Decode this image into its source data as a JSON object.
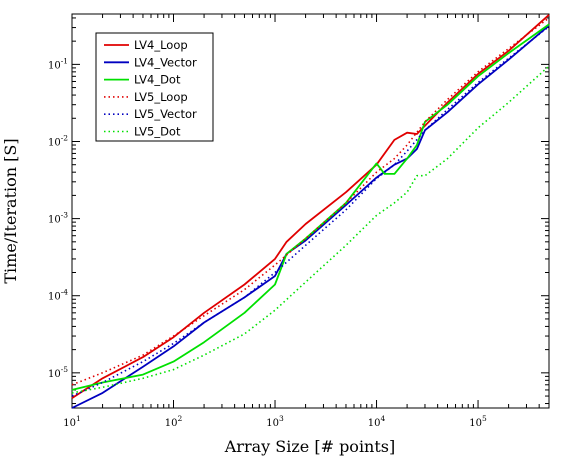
{
  "chart_data": {
    "type": "line",
    "xlabel": "Array Size [# points]",
    "ylabel": "Time/Iteration [S]",
    "xscale": "log",
    "yscale": "log",
    "xlim": [
      10,
      500000
    ],
    "ylim": [
      3.5e-06,
      0.45
    ],
    "x_ticks": [
      {
        "value": 10,
        "base": "10",
        "exp": "1"
      },
      {
        "value": 100,
        "base": "10",
        "exp": "2"
      },
      {
        "value": 1000,
        "base": "10",
        "exp": "3"
      },
      {
        "value": 10000,
        "base": "10",
        "exp": "4"
      },
      {
        "value": 100000,
        "base": "10",
        "exp": "5"
      }
    ],
    "y_ticks": [
      {
        "value": 1e-05,
        "base": "10",
        "exp": "-5"
      },
      {
        "value": 0.0001,
        "base": "10",
        "exp": "-4"
      },
      {
        "value": 0.001,
        "base": "10",
        "exp": "-3"
      },
      {
        "value": 0.01,
        "base": "10",
        "exp": "-2"
      },
      {
        "value": 0.1,
        "base": "10",
        "exp": "-1"
      }
    ],
    "grid": false,
    "legend_position": "top-left",
    "series": [
      {
        "name": "LV4_Loop",
        "color": "#e00000",
        "dash": "solid",
        "points": [
          [
            10,
            4.7e-06
          ],
          [
            20,
            8.5e-06
          ],
          [
            50,
            1.6e-05
          ],
          [
            100,
            2.9e-05
          ],
          [
            200,
            6e-05
          ],
          [
            500,
            0.00014
          ],
          [
            1000,
            0.0003
          ],
          [
            1300,
            0.0005
          ],
          [
            2000,
            0.00085
          ],
          [
            5000,
            0.0022
          ],
          [
            10000,
            0.005
          ],
          [
            15000,
            0.0105
          ],
          [
            20000,
            0.013
          ],
          [
            25000,
            0.0125
          ],
          [
            30000,
            0.016
          ],
          [
            50000,
            0.032
          ],
          [
            100000,
            0.075
          ],
          [
            200000,
            0.15
          ],
          [
            500000,
            0.44
          ]
        ]
      },
      {
        "name": "LV4_Vector",
        "color": "#0000c0",
        "dash": "solid",
        "points": [
          [
            10,
            3.5e-06
          ],
          [
            20,
            5.5e-06
          ],
          [
            50,
            1.2e-05
          ],
          [
            100,
            2.2e-05
          ],
          [
            200,
            4.5e-05
          ],
          [
            500,
            9.5e-05
          ],
          [
            1000,
            0.00018
          ],
          [
            1300,
            0.00035
          ],
          [
            2000,
            0.00052
          ],
          [
            5000,
            0.0015
          ],
          [
            10000,
            0.0034
          ],
          [
            15000,
            0.005
          ],
          [
            20000,
            0.006
          ],
          [
            25000,
            0.008
          ],
          [
            30000,
            0.014
          ],
          [
            50000,
            0.024
          ],
          [
            100000,
            0.055
          ],
          [
            200000,
            0.115
          ],
          [
            500000,
            0.32
          ]
        ]
      },
      {
        "name": "LV4_Dot",
        "color": "#00e000",
        "dash": "solid",
        "points": [
          [
            10,
            6e-06
          ],
          [
            20,
            7.5e-06
          ],
          [
            50,
            9.5e-06
          ],
          [
            100,
            1.4e-05
          ],
          [
            200,
            2.5e-05
          ],
          [
            500,
            6e-05
          ],
          [
            1000,
            0.00014
          ],
          [
            1300,
            0.00035
          ],
          [
            2000,
            0.00055
          ],
          [
            5000,
            0.0016
          ],
          [
            10000,
            0.0052
          ],
          [
            12000,
            0.0038
          ],
          [
            15000,
            0.0038
          ],
          [
            20000,
            0.006
          ],
          [
            25000,
            0.009
          ],
          [
            30000,
            0.018
          ],
          [
            50000,
            0.03
          ],
          [
            100000,
            0.07
          ],
          [
            200000,
            0.14
          ],
          [
            500000,
            0.33
          ]
        ]
      },
      {
        "name": "LV5_Loop",
        "color": "#e00000",
        "dash": "dotted",
        "points": [
          [
            10,
            7e-06
          ],
          [
            20,
            1e-05
          ],
          [
            50,
            1.7e-05
          ],
          [
            100,
            3e-05
          ],
          [
            200,
            5.5e-05
          ],
          [
            500,
            0.00012
          ],
          [
            1000,
            0.00025
          ],
          [
            2000,
            0.00055
          ],
          [
            5000,
            0.0016
          ],
          [
            10000,
            0.004
          ],
          [
            15000,
            0.006
          ],
          [
            20000,
            0.009
          ],
          [
            30000,
            0.018
          ],
          [
            50000,
            0.035
          ],
          [
            100000,
            0.08
          ],
          [
            200000,
            0.16
          ],
          [
            500000,
            0.4
          ]
        ]
      },
      {
        "name": "LV5_Vector",
        "color": "#0000c0",
        "dash": "dotted",
        "points": [
          [
            10,
            5e-06
          ],
          [
            20,
            7.5e-06
          ],
          [
            50,
            1.4e-05
          ],
          [
            100,
            2.4e-05
          ],
          [
            200,
            4.5e-05
          ],
          [
            500,
            9.5e-05
          ],
          [
            1000,
            0.0002
          ],
          [
            2000,
            0.00045
          ],
          [
            5000,
            0.0013
          ],
          [
            10000,
            0.0033
          ],
          [
            15000,
            0.005
          ],
          [
            20000,
            0.0075
          ],
          [
            30000,
            0.014
          ],
          [
            50000,
            0.026
          ],
          [
            100000,
            0.058
          ],
          [
            200000,
            0.12
          ],
          [
            500000,
            0.31
          ]
        ]
      },
      {
        "name": "LV5_Dot",
        "color": "#00e000",
        "dash": "dotted",
        "points": [
          [
            10,
            5.5e-06
          ],
          [
            20,
            6.5e-06
          ],
          [
            50,
            8.5e-06
          ],
          [
            100,
            1.1e-05
          ],
          [
            200,
            1.7e-05
          ],
          [
            500,
            3.2e-05
          ],
          [
            1000,
            6.5e-05
          ],
          [
            2000,
            0.00015
          ],
          [
            5000,
            0.00045
          ],
          [
            10000,
            0.0011
          ],
          [
            15000,
            0.0016
          ],
          [
            20000,
            0.0022
          ],
          [
            25000,
            0.0036
          ],
          [
            30000,
            0.0036
          ],
          [
            50000,
            0.006
          ],
          [
            100000,
            0.015
          ],
          [
            200000,
            0.032
          ],
          [
            500000,
            0.095
          ]
        ]
      }
    ]
  }
}
